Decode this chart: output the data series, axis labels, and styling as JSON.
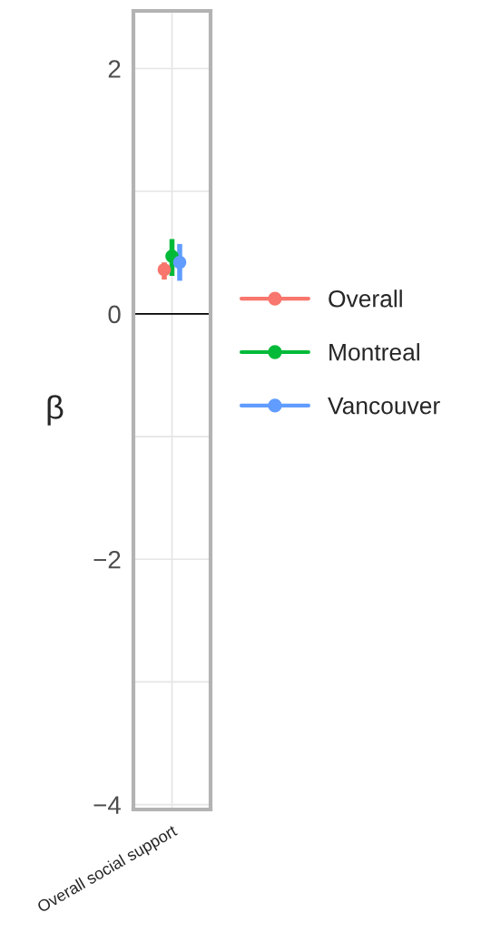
{
  "chart_data": {
    "type": "scatter",
    "ylabel": "β",
    "categories": [
      "Overall social support"
    ],
    "series": [
      {
        "name": "Overall",
        "color": "#f8766d",
        "values": [
          0.36
        ],
        "errors": [
          [
            0.28,
            0.42
          ]
        ]
      },
      {
        "name": "Montreal",
        "color": "#00ba38",
        "values": [
          0.47
        ],
        "errors": [
          [
            0.31,
            0.61
          ]
        ]
      },
      {
        "name": "Vancouver",
        "color": "#619cff",
        "values": [
          0.42
        ],
        "errors": [
          [
            0.27,
            0.57
          ]
        ]
      }
    ],
    "ylim": [
      -4.04,
      2.47
    ],
    "yticks": [
      -4,
      {
        "value": -3,
        "label": null
      },
      -2,
      {
        "value": -1,
        "label": null
      },
      0,
      {
        "value": 1,
        "label": null
      },
      2
    ],
    "ref_lines": [
      {
        "axis": "y",
        "value": 0,
        "color": "#000000"
      }
    ],
    "grid": true,
    "legend": "right",
    "marker": "circle"
  }
}
